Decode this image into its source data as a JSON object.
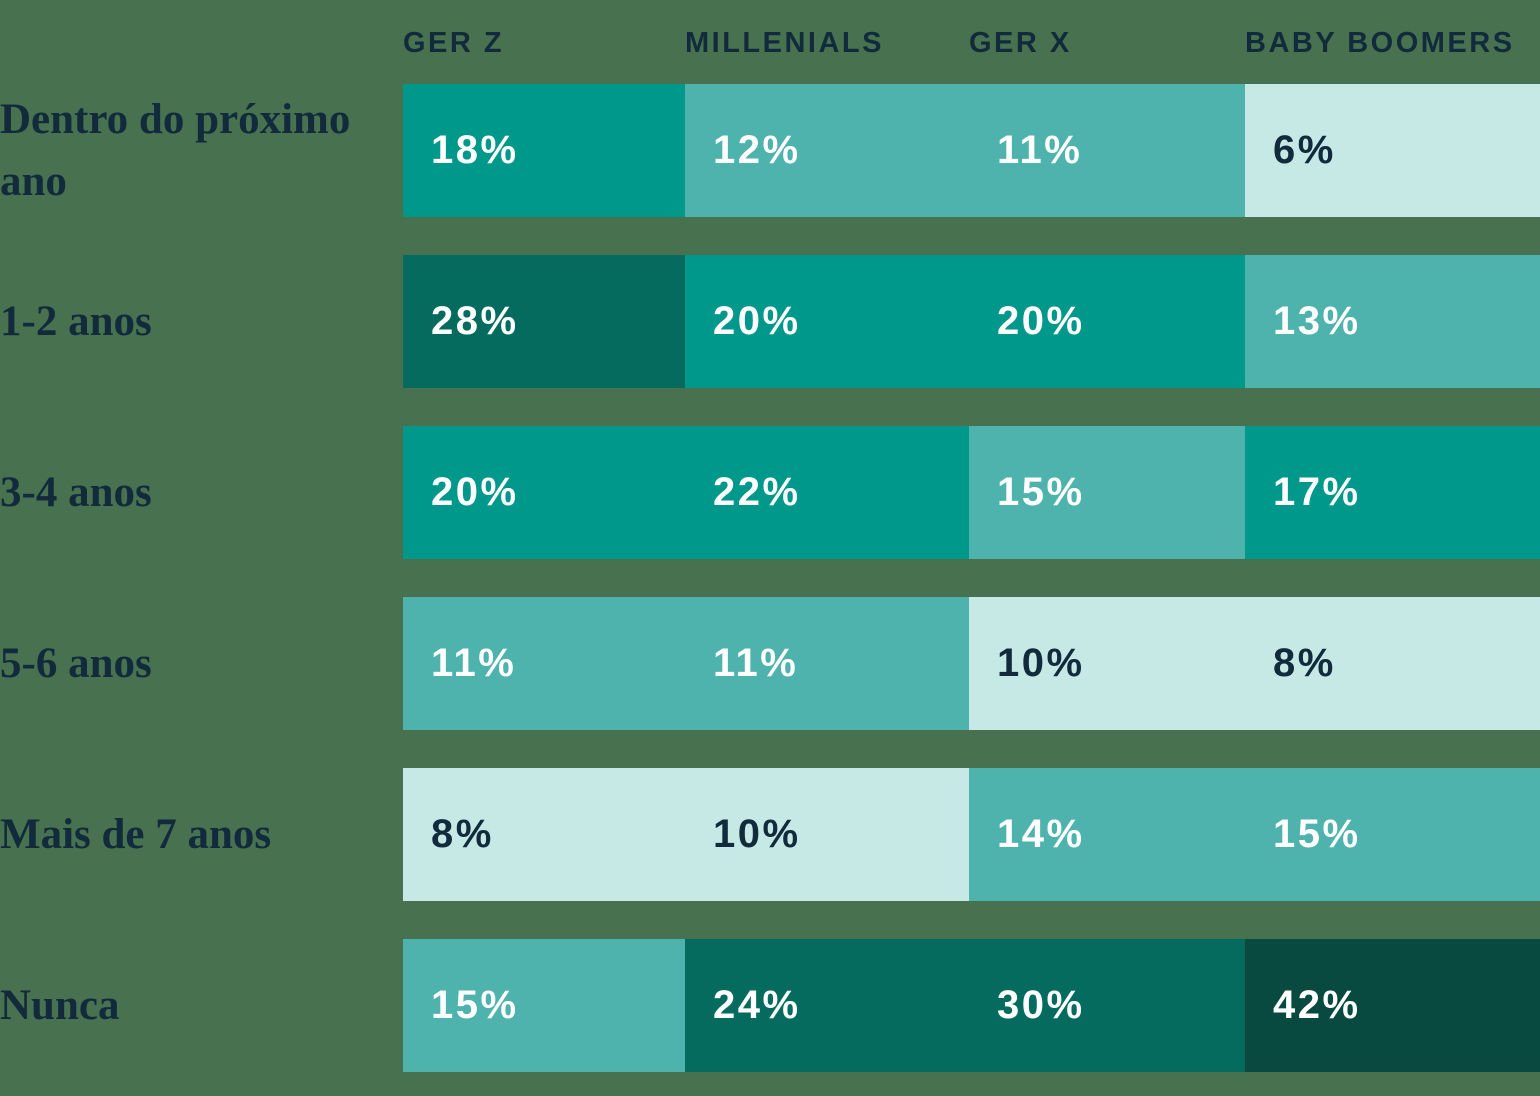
{
  "colors": {
    "background": "#47714F",
    "text_dark_navy": "#122B3C",
    "text_white": "#FFFFFF",
    "cell_level1_light_mint": "#C7E9E6",
    "cell_level2_medium_teal": "#4DB3AC",
    "cell_level3_teal": "#00988B",
    "cell_level4_dark_teal": "#056B5E",
    "cell_level5_darkest_teal": "#084A40"
  },
  "chart_data": {
    "type": "heatmap",
    "columns": [
      "GER Z",
      "MILLENIALS",
      "GER X",
      "BABY BOOMERS"
    ],
    "value_suffix": "%",
    "legend": "none",
    "rows": [
      {
        "label": "Dentro do próximo ano",
        "values": [
          18,
          12,
          11,
          6
        ],
        "display": [
          "18%",
          "12%",
          "11%",
          "6%"
        ],
        "levels": [
          3,
          2,
          2,
          1
        ]
      },
      {
        "label": "1-2 anos",
        "values": [
          28,
          20,
          20,
          13
        ],
        "display": [
          "28%",
          "20%",
          "20%",
          "13%"
        ],
        "levels": [
          4,
          3,
          3,
          2
        ]
      },
      {
        "label": "3-4 anos",
        "values": [
          20,
          22,
          15,
          17
        ],
        "display": [
          "20%",
          "22%",
          "15%",
          "17%"
        ],
        "levels": [
          3,
          3,
          2,
          3
        ]
      },
      {
        "label": "5-6 anos",
        "values": [
          11,
          11,
          10,
          8
        ],
        "display": [
          "11%",
          "11%",
          "10%",
          "8%"
        ],
        "levels": [
          2,
          2,
          1,
          1
        ]
      },
      {
        "label": "Mais de 7 anos",
        "values": [
          8,
          10,
          14,
          15
        ],
        "display": [
          "8%",
          "10%",
          "14%",
          "15%"
        ],
        "levels": [
          1,
          1,
          2,
          2
        ]
      },
      {
        "label": "Nunca",
        "values": [
          15,
          24,
          30,
          42
        ],
        "display": [
          "15%",
          "24%",
          "30%",
          "42%"
        ],
        "levels": [
          2,
          4,
          4,
          5
        ]
      }
    ]
  }
}
